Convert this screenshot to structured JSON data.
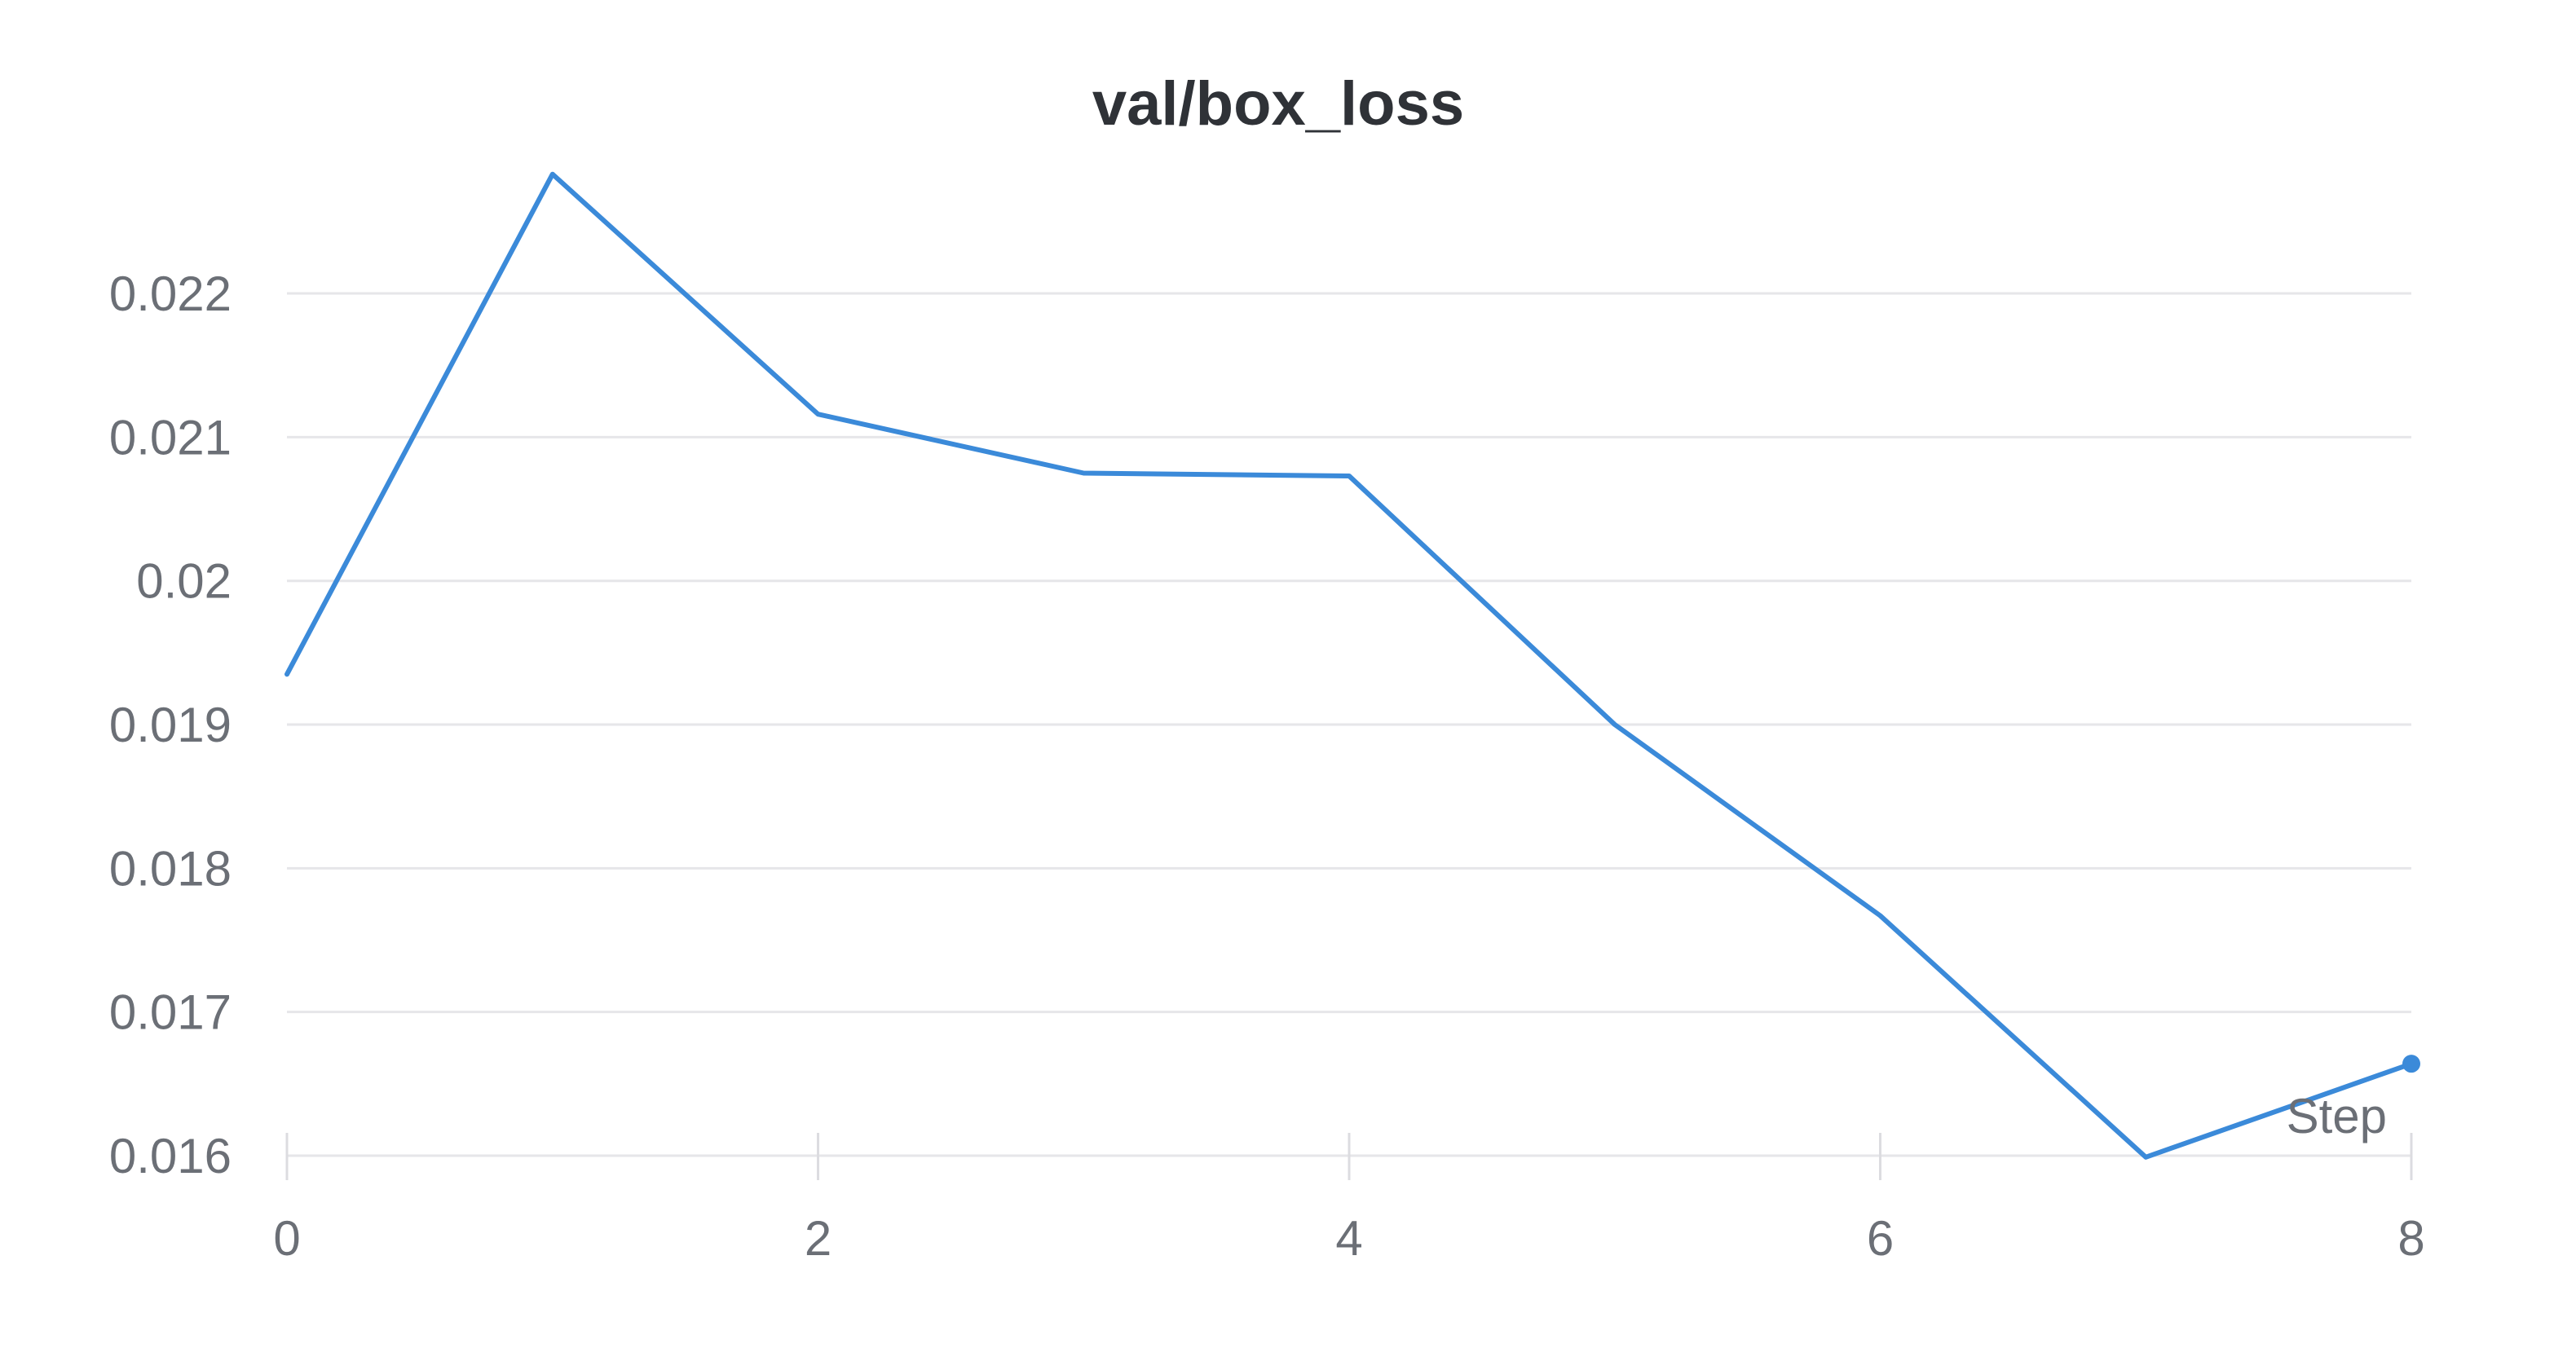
{
  "chart_data": {
    "type": "line",
    "title": "val/box_loss",
    "xlabel": "Step",
    "ylabel": "",
    "xlim": [
      0,
      8
    ],
    "ylim": [
      0.016,
      0.0228
    ],
    "x_ticks": [
      0,
      2,
      4,
      6,
      8
    ],
    "x_tick_labels": [
      "0",
      "2",
      "4",
      "6",
      "8"
    ],
    "y_ticks": [
      0.016,
      0.017,
      0.018,
      0.019,
      0.02,
      0.021,
      0.022
    ],
    "y_tick_labels": [
      "0.016",
      "0.017",
      "0.018",
      "0.019",
      "0.02",
      "0.021",
      "0.022"
    ],
    "grid": true,
    "line_color": "#3b8ad9",
    "series": [
      {
        "x": [
          0,
          1,
          2,
          3,
          4,
          5,
          6,
          7,
          8
        ],
        "values": [
          0.01935,
          0.02283,
          0.02116,
          0.02075,
          0.02073,
          0.019,
          0.01767,
          0.01599,
          0.01664
        ]
      }
    ]
  }
}
